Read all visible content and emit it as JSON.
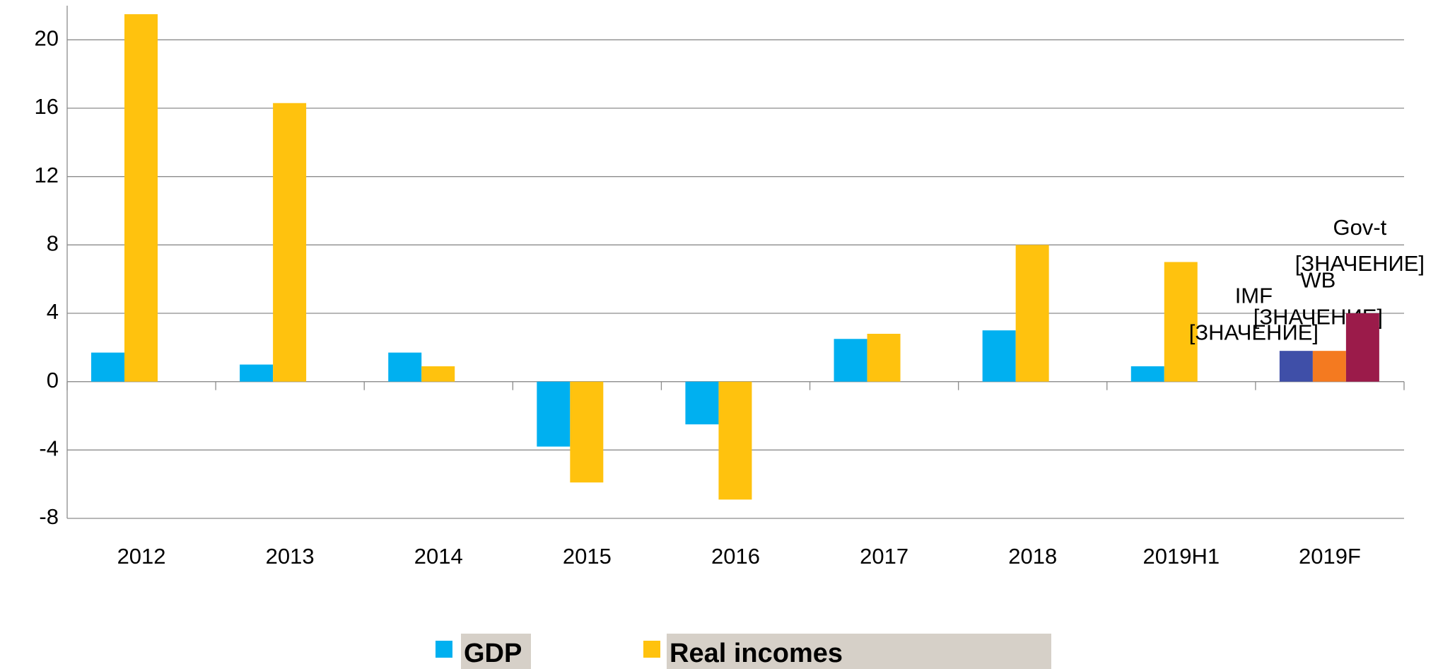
{
  "chart_data": {
    "type": "bar",
    "categories": [
      "2012",
      "2013",
      "2014",
      "2015",
      "2016",
      "2017",
      "2018",
      "2019H1",
      "2019F"
    ],
    "series": [
      {
        "name": "GDP",
        "color": "#00b0f0",
        "values": [
          1.7,
          1.0,
          1.7,
          -3.8,
          -2.5,
          2.5,
          3.0,
          0.9,
          null
        ]
      },
      {
        "name": "Real incomes",
        "color": "#ffc20e",
        "values": [
          21.5,
          16.3,
          0.9,
          -5.9,
          -6.9,
          2.8,
          8.0,
          7.0,
          null
        ]
      },
      {
        "name": "IMF",
        "color": "#3f4fa8",
        "in_legend": false,
        "values": [
          null,
          null,
          null,
          null,
          null,
          null,
          null,
          null,
          1.8
        ],
        "value_labels": [
          null,
          null,
          null,
          null,
          null,
          null,
          null,
          null,
          "[ЗНАЧЕНИЕ]"
        ]
      },
      {
        "name": "WB",
        "color": "#f47a20",
        "in_legend": false,
        "values": [
          null,
          null,
          null,
          null,
          null,
          null,
          null,
          null,
          1.8
        ],
        "value_labels": [
          null,
          null,
          null,
          null,
          null,
          null,
          null,
          null,
          "[ЗНАЧЕНИЕ]"
        ]
      },
      {
        "name": "Gov-t",
        "color": "#9b1b4a",
        "in_legend": false,
        "values": [
          null,
          null,
          null,
          null,
          null,
          null,
          null,
          null,
          4.0
        ],
        "value_labels": [
          null,
          null,
          null,
          null,
          null,
          null,
          null,
          null,
          "[ЗНАЧЕНИЕ]"
        ]
      }
    ],
    "ylim": [
      -8,
      22
    ],
    "yticks": [
      -8,
      -4,
      0,
      4,
      8,
      12,
      16,
      20
    ],
    "grid": true,
    "legend": "bottom"
  }
}
